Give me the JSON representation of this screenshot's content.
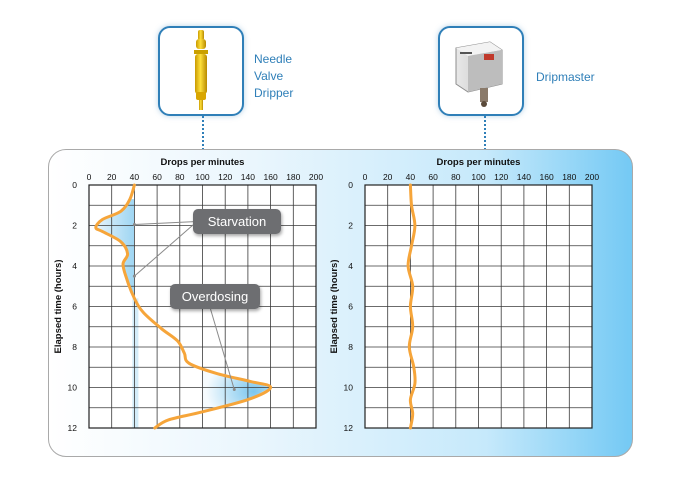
{
  "devices": [
    {
      "label_lines": [
        "Needle",
        "Valve",
        "Dripper"
      ],
      "icon": "needle-valve-dripper-icon"
    },
    {
      "label_lines": [
        "Dripmaster"
      ],
      "icon": "dripmaster-device-icon"
    }
  ],
  "colors": {
    "curve": "#f6a53a",
    "accent": "#2f7fb8",
    "grid": "#3a3a3a",
    "callout": "#6d6e71",
    "fill": "#4fb3e8"
  },
  "chart_data": [
    {
      "type": "line",
      "title": "Drops per minutes",
      "xlabel": "Drops per minutes",
      "ylabel": "Elapsed time (hours)",
      "xlim": [
        0,
        200
      ],
      "ylim": [
        0,
        12
      ],
      "x_ticks": [
        "0",
        "20",
        "40",
        "60",
        "80",
        "100",
        "120",
        "140",
        "160",
        "180",
        "200"
      ],
      "y_ticks": [
        "0",
        "2",
        "4",
        "6",
        "8",
        "10",
        "12"
      ],
      "grid": true,
      "series": [
        {
          "points": [
            [
              40,
              0
            ],
            [
              36,
              0.7
            ],
            [
              28,
              1.3
            ],
            [
              12,
              1.7
            ],
            [
              6,
              2.1
            ],
            [
              12,
              2.3
            ],
            [
              28,
              2.8
            ],
            [
              34,
              3.4
            ],
            [
              30,
              3.9
            ],
            [
              33,
              4.6
            ],
            [
              40,
              5.6
            ],
            [
              48,
              6.3
            ],
            [
              64,
              7.1
            ],
            [
              78,
              7.7
            ],
            [
              84,
              8.3
            ],
            [
              88,
              8.8
            ],
            [
              112,
              9.3
            ],
            [
              142,
              9.7
            ],
            [
              160,
              10.0
            ],
            [
              140,
              10.6
            ],
            [
              100,
              11.2
            ],
            [
              70,
              11.6
            ],
            [
              58,
              12.0
            ]
          ]
        }
      ],
      "annotations": [
        {
          "text": "Starvation",
          "targets": [
            [
              40,
              1.95
            ],
            [
              40,
              4.5
            ]
          ]
        },
        {
          "text": "Overdosing",
          "targets": [
            [
              128,
              10.1
            ]
          ]
        }
      ]
    },
    {
      "type": "line",
      "title": "Drops per minutes",
      "xlabel": "Drops per minutes",
      "ylabel": "Elapsed time (hours)",
      "xlim": [
        0,
        200
      ],
      "ylim": [
        0,
        12
      ],
      "x_ticks": [
        "0",
        "20",
        "40",
        "60",
        "80",
        "100",
        "120",
        "140",
        "160",
        "180",
        "200"
      ],
      "y_ticks": [
        "0",
        "2",
        "4",
        "6",
        "8",
        "10",
        "12"
      ],
      "grid": true,
      "series": [
        {
          "points": [
            [
              40,
              0
            ],
            [
              41,
              1
            ],
            [
              44,
              2
            ],
            [
              41,
              3
            ],
            [
              38,
              4
            ],
            [
              42,
              5
            ],
            [
              40,
              6
            ],
            [
              42,
              7
            ],
            [
              39,
              8
            ],
            [
              43,
              9
            ],
            [
              44,
              9.8
            ],
            [
              40,
              10.6
            ],
            [
              42,
              11.3
            ],
            [
              40,
              12
            ]
          ]
        }
      ]
    }
  ]
}
